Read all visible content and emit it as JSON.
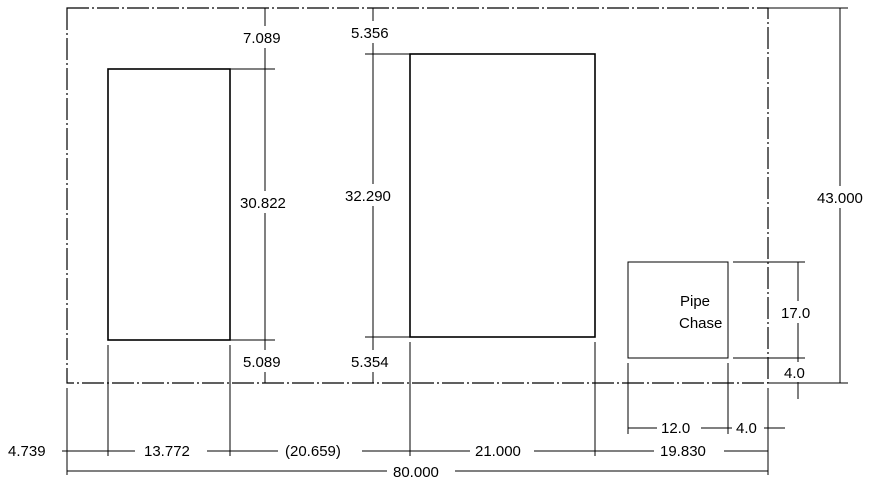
{
  "labels": {
    "pipe_chase_line1": "Pipe",
    "pipe_chase_line2": "Chase"
  },
  "dimensions": {
    "top_gap_left": "7.089",
    "height_left": "30.822",
    "bottom_gap_left": "5.089",
    "top_gap_right": "5.356",
    "height_right": "32.290",
    "bottom_gap_right": "5.354",
    "overall_height": "43.000",
    "chase_height": "17.0",
    "chase_bottom_offset": "4.0",
    "left_margin": "4.739",
    "left_rect_width": "13.772",
    "gap_between": "(20.659)",
    "right_rect_width": "21.000",
    "right_margin": "19.830",
    "chase_width": "12.0",
    "chase_right_offset": "4.0",
    "overall_width": "80.000"
  }
}
